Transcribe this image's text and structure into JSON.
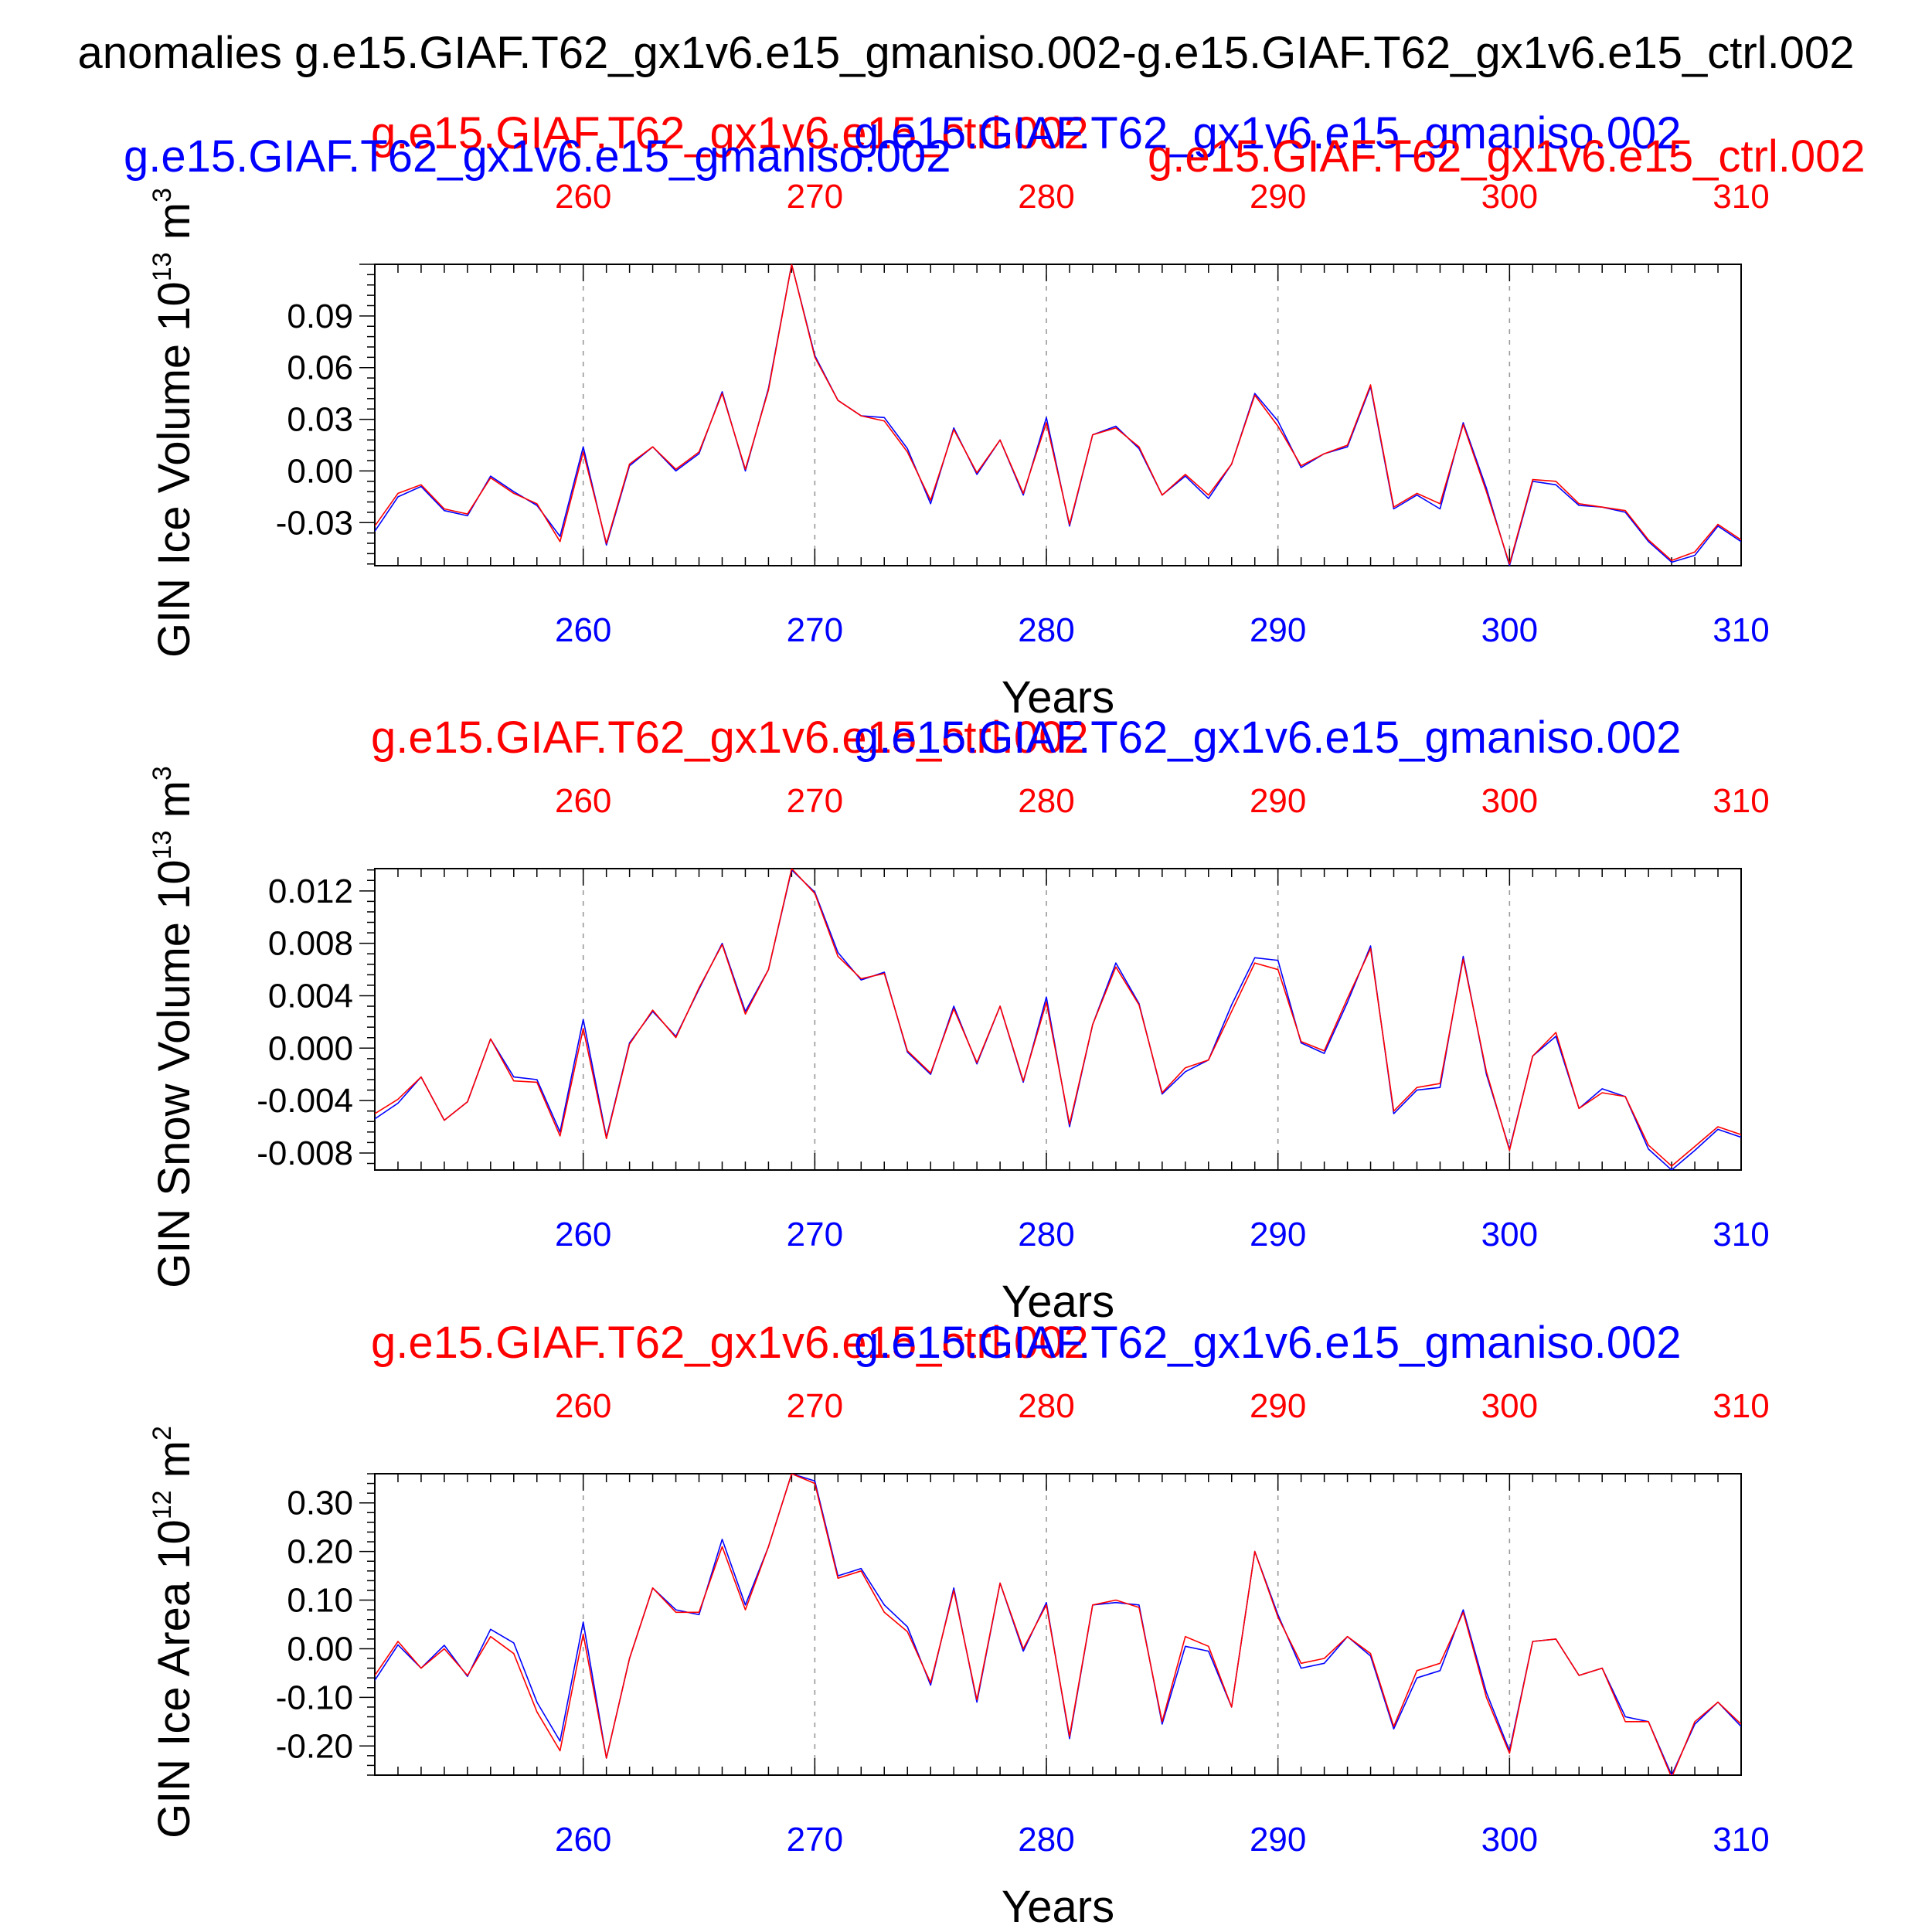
{
  "figure": {
    "title": "anomalies g.e15.GIAF.T62_gx1v6.e15_gmaniso.002-g.e15.GIAF.T62_gx1v6.e15_ctrl.002"
  },
  "colors": {
    "blue": "#0000ff",
    "red": "#ff0000",
    "axis": "#000000",
    "grid": "#999999"
  },
  "chart_data": [
    {
      "type": "line",
      "xlabel": "Years",
      "ylabel": "GIN Ice Volume 10",
      "ylabel_sup": "13",
      "ylabel_unit": "m",
      "ylabel_unit_sup": "3",
      "xlim": [
        251,
        310
      ],
      "ylim": [
        -0.055,
        0.12
      ],
      "yticks": [
        -0.03,
        0.0,
        0.03,
        0.06,
        0.09
      ],
      "ytick_labels": [
        "-0.03",
        "0.00",
        "0.03",
        "0.06",
        "0.09"
      ],
      "xticks": [
        260,
        270,
        280,
        290,
        300,
        310
      ],
      "xtick_labels": [
        "260",
        "270",
        "280",
        "290",
        "300",
        "310"
      ],
      "top_labels": [
        "g.e15.GIAF.T62_gx1v6.e15_ctrl.002",
        "g.e15.GIAF.T62_gx1v6.e15_gmaniso.002"
      ],
      "extra_labels": [
        "g.e15.GIAF.T62_gx1v6.e15_gmaniso.002",
        "g.e15.GIAF.T62_gx1v6.e15_ctrl.002"
      ],
      "x": [
        251,
        252,
        253,
        254,
        255,
        256,
        257,
        258,
        259,
        260,
        261,
        262,
        263,
        264,
        265,
        266,
        267,
        268,
        269,
        270,
        271,
        272,
        273,
        274,
        275,
        276,
        277,
        278,
        279,
        280,
        281,
        282,
        283,
        284,
        285,
        286,
        287,
        288,
        289,
        290,
        291,
        292,
        293,
        294,
        295,
        296,
        297,
        298,
        299,
        300,
        301,
        302,
        303,
        304,
        305,
        306,
        307,
        308,
        309,
        310
      ],
      "series": [
        {
          "name": "g.e15.GIAF.T62_gx1v6.e15_gmaniso.002",
          "color": "#0000ff",
          "values": [
            -0.035,
            -0.015,
            -0.009,
            -0.023,
            -0.026,
            -0.003,
            -0.012,
            -0.02,
            -0.038,
            0.014,
            -0.043,
            0.003,
            0.014,
            0.0,
            0.01,
            0.046,
            0.0,
            0.048,
            0.12,
            0.067,
            0.041,
            0.032,
            0.031,
            0.013,
            -0.019,
            0.025,
            -0.002,
            0.018,
            -0.014,
            0.031,
            -0.032,
            0.021,
            0.026,
            0.013,
            -0.014,
            -0.003,
            -0.016,
            0.004,
            0.045,
            0.029,
            0.002,
            0.01,
            0.014,
            0.049,
            -0.022,
            -0.014,
            -0.022,
            0.028,
            -0.01,
            -0.055,
            -0.006,
            -0.008,
            -0.02,
            -0.021,
            -0.024,
            -0.041,
            -0.053,
            -0.049,
            -0.032,
            -0.041
          ]
        },
        {
          "name": "g.e15.GIAF.T62_gx1v6.e15_ctrl.002",
          "color": "#ff0000",
          "values": [
            -0.032,
            -0.013,
            -0.008,
            -0.022,
            -0.025,
            -0.004,
            -0.013,
            -0.019,
            -0.041,
            0.011,
            -0.042,
            0.004,
            0.014,
            0.001,
            0.011,
            0.045,
            0.001,
            0.047,
            0.12,
            0.066,
            0.041,
            0.032,
            0.029,
            0.011,
            -0.017,
            0.024,
            -0.001,
            0.018,
            -0.013,
            0.028,
            -0.031,
            0.021,
            0.025,
            0.014,
            -0.014,
            -0.002,
            -0.014,
            0.004,
            0.044,
            0.026,
            0.003,
            0.01,
            0.015,
            0.05,
            -0.021,
            -0.013,
            -0.019,
            0.027,
            -0.012,
            -0.054,
            -0.005,
            -0.006,
            -0.019,
            -0.021,
            -0.023,
            -0.04,
            -0.052,
            -0.047,
            -0.031,
            -0.04
          ]
        }
      ]
    },
    {
      "type": "line",
      "xlabel": "Years",
      "ylabel": "GIN Snow Volume 10",
      "ylabel_sup": "13",
      "ylabel_unit": "m",
      "ylabel_unit_sup": "3",
      "xlim": [
        251,
        310
      ],
      "ylim": [
        -0.0093,
        0.0137
      ],
      "yticks": [
        -0.008,
        -0.004,
        0.0,
        0.004,
        0.008,
        0.012
      ],
      "ytick_labels": [
        "-0.008",
        "-0.004",
        "0.000",
        "0.004",
        "0.008",
        "0.012"
      ],
      "xticks": [
        260,
        270,
        280,
        290,
        300,
        310
      ],
      "xtick_labels": [
        "260",
        "270",
        "280",
        "290",
        "300",
        "310"
      ],
      "top_labels": [
        "g.e15.GIAF.T62_gx1v6.e15_ctrl.002",
        "g.e15.GIAF.T62_gx1v6.e15_gmaniso.002"
      ],
      "x": [
        251,
        252,
        253,
        254,
        255,
        256,
        257,
        258,
        259,
        260,
        261,
        262,
        263,
        264,
        265,
        266,
        267,
        268,
        269,
        270,
        271,
        272,
        273,
        274,
        275,
        276,
        277,
        278,
        279,
        280,
        281,
        282,
        283,
        284,
        285,
        286,
        287,
        288,
        289,
        290,
        291,
        292,
        293,
        294,
        295,
        296,
        297,
        298,
        299,
        300,
        301,
        302,
        303,
        304,
        305,
        306,
        307,
        308,
        309,
        310
      ],
      "series": [
        {
          "name": "g.e15.GIAF.T62_gx1v6.e15_gmaniso.002",
          "color": "#0000ff",
          "values": [
            -0.0054,
            -0.0042,
            -0.0022,
            -0.0055,
            -0.0041,
            0.0007,
            -0.0022,
            -0.0024,
            -0.0064,
            0.0022,
            -0.0068,
            0.0004,
            0.0028,
            0.0009,
            0.0045,
            0.008,
            0.0028,
            0.006,
            0.0136,
            0.0119,
            0.0073,
            0.0052,
            0.0058,
            -0.0003,
            -0.002,
            0.0032,
            -0.0012,
            0.0032,
            -0.0026,
            0.0039,
            -0.006,
            0.0018,
            0.0065,
            0.0034,
            -0.0035,
            -0.0018,
            -0.0009,
            0.0033,
            0.0069,
            0.0067,
            0.0004,
            -0.0004,
            0.0035,
            0.0078,
            -0.005,
            -0.0032,
            -0.003,
            0.007,
            -0.002,
            -0.0077,
            -0.0006,
            0.0009,
            -0.0046,
            -0.0031,
            -0.0037,
            -0.0077,
            -0.0093,
            -0.0078,
            -0.0062,
            -0.0068
          ]
        },
        {
          "name": "g.e15.GIAF.T62_gx1v6.e15_ctrl.002",
          "color": "#ff0000",
          "values": [
            -0.005,
            -0.0039,
            -0.0022,
            -0.0055,
            -0.0041,
            0.0007,
            -0.0025,
            -0.0026,
            -0.0067,
            0.0015,
            -0.0069,
            0.0003,
            0.0029,
            0.0008,
            0.0046,
            0.0079,
            0.0026,
            0.006,
            0.0137,
            0.0118,
            0.007,
            0.0053,
            0.0057,
            -0.0002,
            -0.0019,
            0.003,
            -0.0011,
            0.0032,
            -0.0025,
            0.0035,
            -0.0058,
            0.0018,
            0.0062,
            0.0033,
            -0.0034,
            -0.0015,
            -0.0009,
            0.0028,
            0.0065,
            0.006,
            0.0005,
            -0.0002,
            0.0038,
            0.0076,
            -0.0048,
            -0.003,
            -0.0027,
            0.0068,
            -0.0018,
            -0.0078,
            -0.0006,
            0.0012,
            -0.0046,
            -0.0034,
            -0.0037,
            -0.0074,
            -0.009,
            -0.0075,
            -0.006,
            -0.0066
          ]
        }
      ]
    },
    {
      "type": "line",
      "xlabel": "Years",
      "ylabel": "GIN Ice Area 10",
      "ylabel_sup": "12",
      "ylabel_unit": "m",
      "ylabel_unit_sup": "2",
      "xlim": [
        251,
        310
      ],
      "ylim": [
        -0.26,
        0.36
      ],
      "yticks": [
        -0.2,
        -0.1,
        0.0,
        0.1,
        0.2,
        0.3
      ],
      "ytick_labels": [
        "-0.20",
        "-0.10",
        "0.00",
        "0.10",
        "0.20",
        "0.30"
      ],
      "xticks": [
        260,
        270,
        280,
        290,
        300,
        310
      ],
      "xtick_labels": [
        "260",
        "270",
        "280",
        "290",
        "300",
        "310"
      ],
      "top_labels": [
        "g.e15.GIAF.T62_gx1v6.e15_ctrl.002",
        "g.e15.GIAF.T62_gx1v6.e15_gmaniso.002"
      ],
      "x": [
        251,
        252,
        253,
        254,
        255,
        256,
        257,
        258,
        259,
        260,
        261,
        262,
        263,
        264,
        265,
        266,
        267,
        268,
        269,
        270,
        271,
        272,
        273,
        274,
        275,
        276,
        277,
        278,
        279,
        280,
        281,
        282,
        283,
        284,
        285,
        286,
        287,
        288,
        289,
        290,
        291,
        292,
        293,
        294,
        295,
        296,
        297,
        298,
        299,
        300,
        301,
        302,
        303,
        304,
        305,
        306,
        307,
        308,
        309,
        310
      ],
      "series": [
        {
          "name": "g.e15.GIAF.T62_gx1v6.e15_gmaniso.002",
          "color": "#0000ff",
          "values": [
            -0.065,
            0.008,
            -0.04,
            0.007,
            -0.057,
            0.04,
            0.012,
            -0.11,
            -0.19,
            0.055,
            -0.225,
            -0.02,
            0.125,
            0.08,
            0.07,
            0.225,
            0.09,
            0.21,
            0.36,
            0.345,
            0.15,
            0.165,
            0.09,
            0.045,
            -0.075,
            0.125,
            -0.11,
            0.135,
            -0.005,
            0.095,
            -0.185,
            0.09,
            0.095,
            0.09,
            -0.155,
            0.005,
            -0.005,
            -0.12,
            0.2,
            0.07,
            -0.04,
            -0.03,
            0.025,
            -0.015,
            -0.165,
            -0.06,
            -0.045,
            0.08,
            -0.09,
            -0.21,
            0.015,
            0.02,
            -0.055,
            -0.04,
            -0.14,
            -0.15,
            -0.26,
            -0.155,
            -0.11,
            -0.16
          ]
        },
        {
          "name": "g.e15.GIAF.T62_gx1v6.e15_ctrl.002",
          "color": "#ff0000",
          "values": [
            -0.055,
            0.015,
            -0.04,
            0.0,
            -0.055,
            0.025,
            -0.01,
            -0.13,
            -0.21,
            0.03,
            -0.225,
            -0.02,
            0.125,
            0.075,
            0.075,
            0.21,
            0.08,
            0.21,
            0.36,
            0.34,
            0.145,
            0.16,
            0.075,
            0.035,
            -0.07,
            0.12,
            -0.105,
            0.135,
            0.0,
            0.09,
            -0.18,
            0.09,
            0.1,
            0.085,
            -0.15,
            0.025,
            0.005,
            -0.12,
            0.2,
            0.065,
            -0.03,
            -0.02,
            0.025,
            -0.01,
            -0.16,
            -0.045,
            -0.03,
            0.075,
            -0.1,
            -0.215,
            0.015,
            0.02,
            -0.055,
            -0.04,
            -0.15,
            -0.15,
            -0.265,
            -0.15,
            -0.11,
            -0.155
          ]
        }
      ]
    }
  ]
}
